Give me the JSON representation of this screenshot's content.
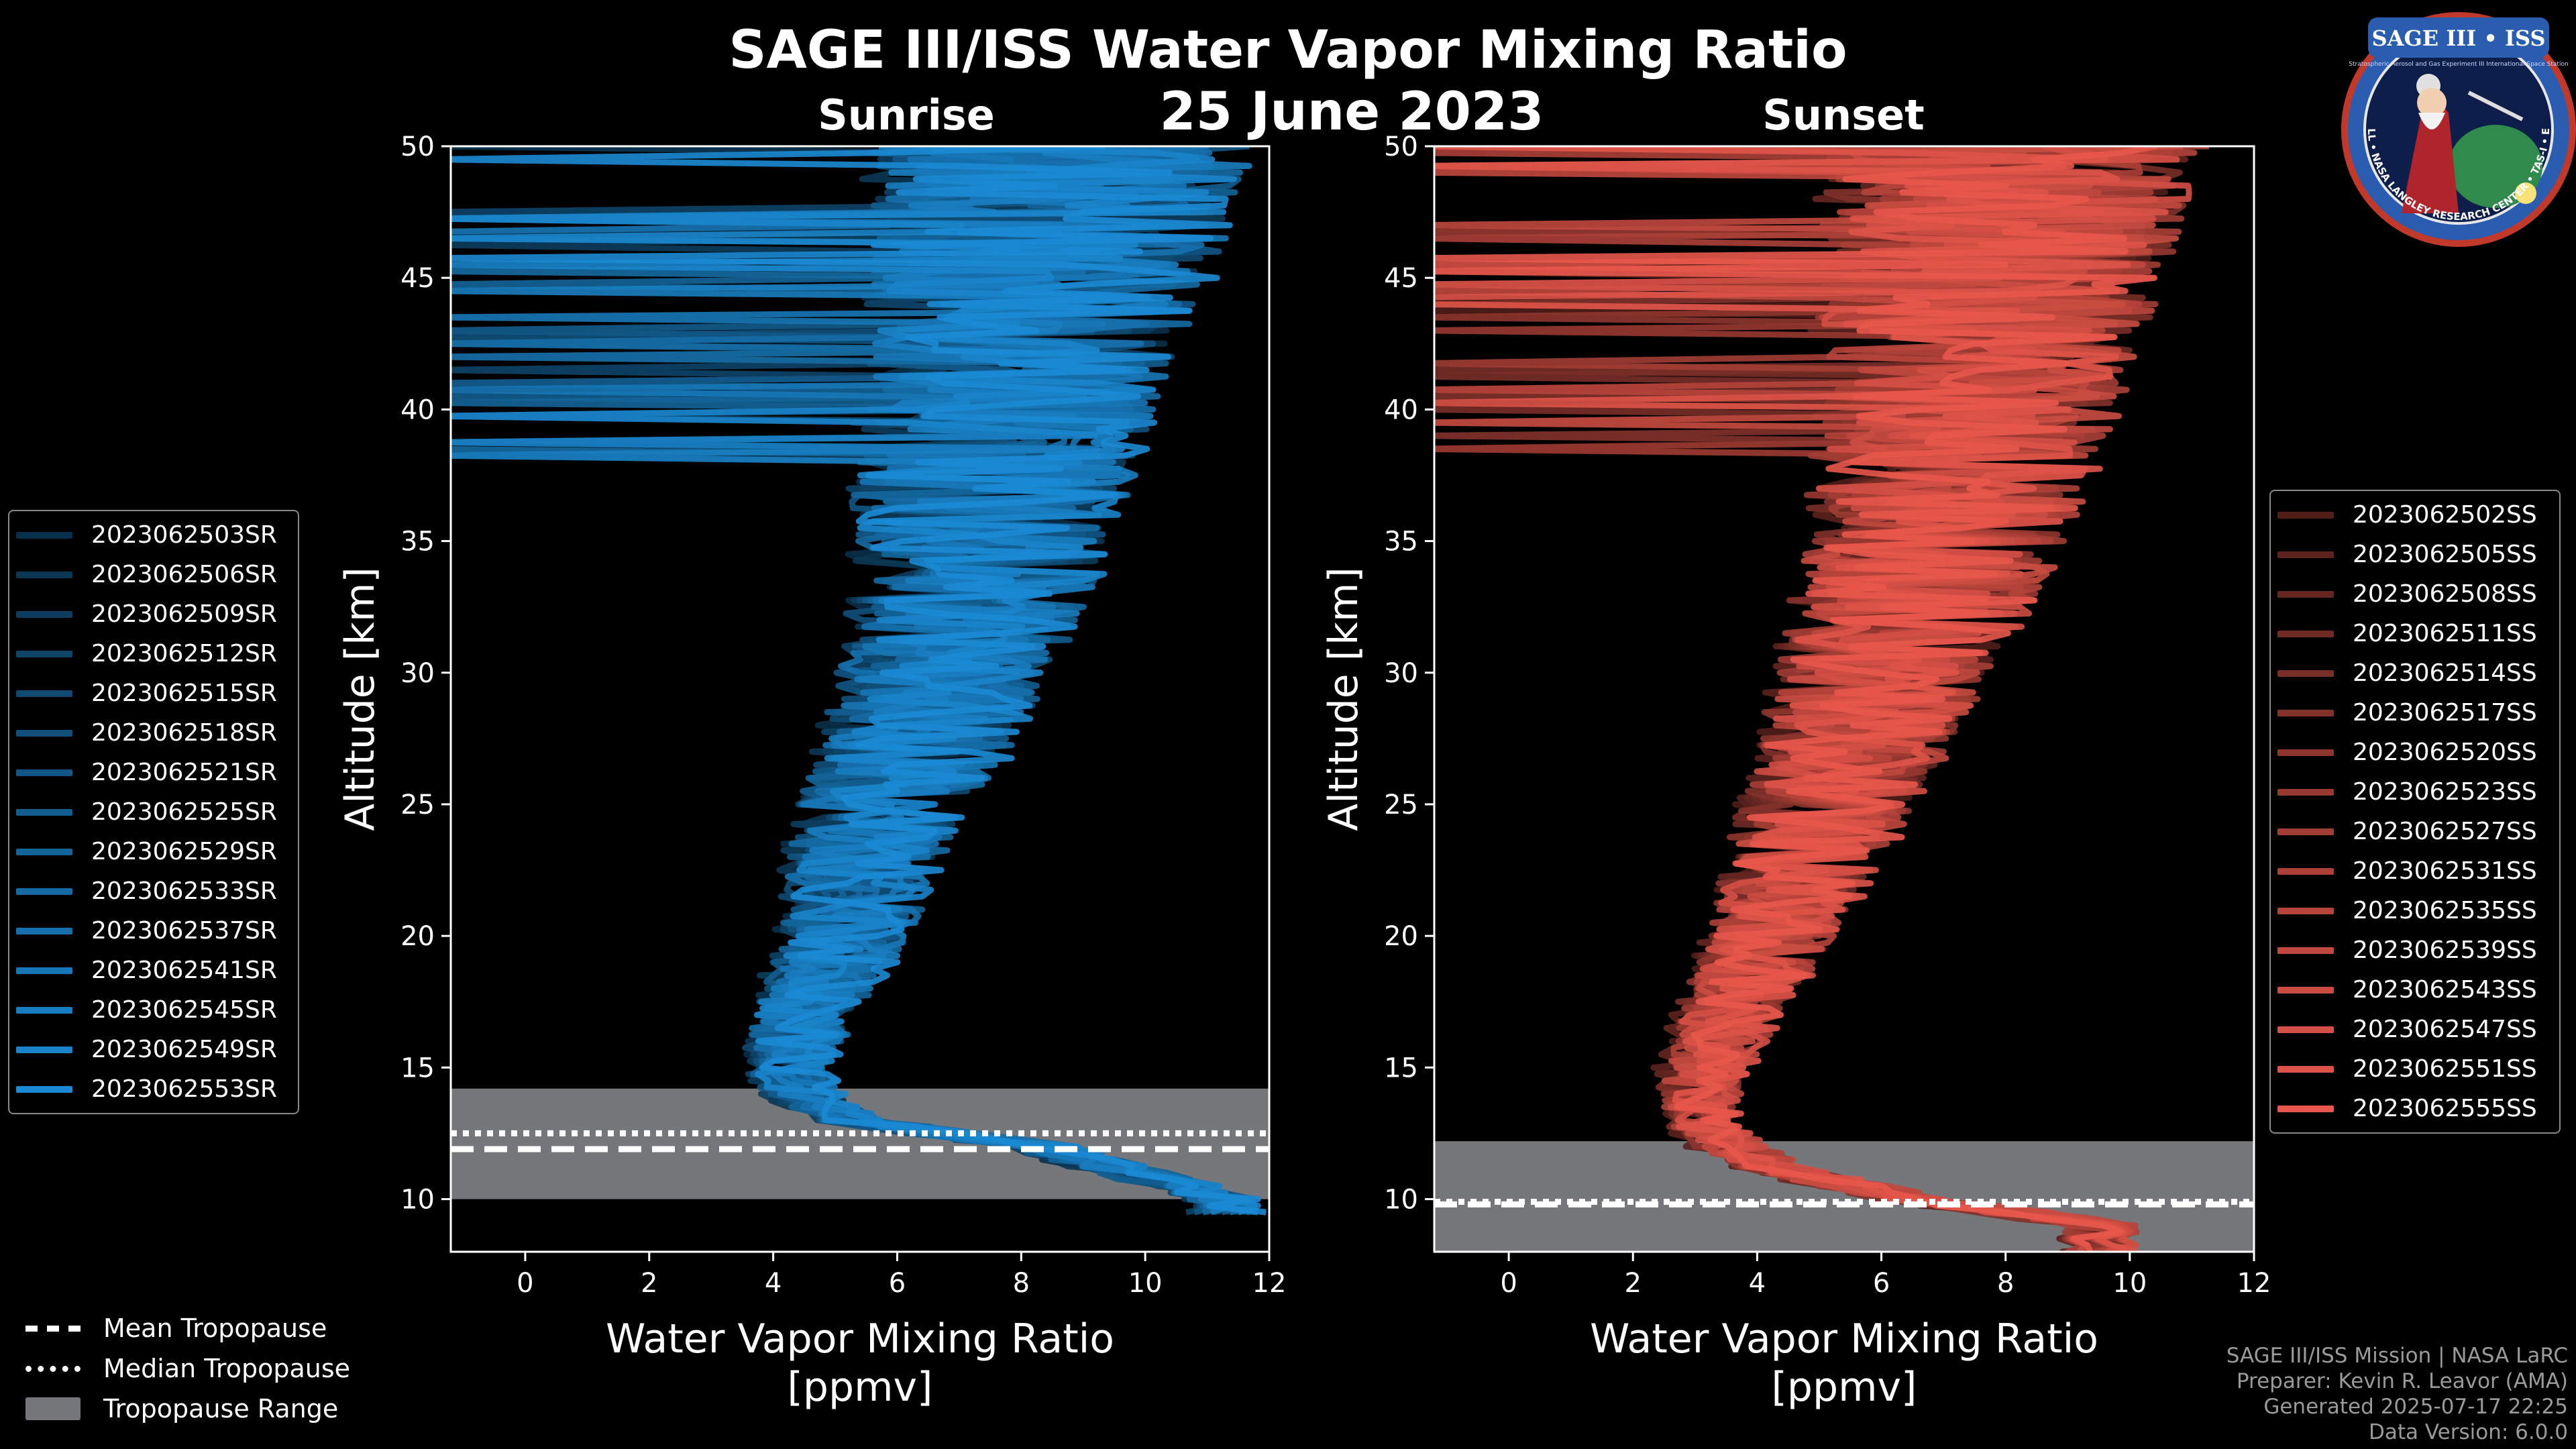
{
  "title": "SAGE III/ISS Water Vapor Mixing Ratio",
  "date": "25 June 2023",
  "colors": {
    "sunrise": "#1b8ad4",
    "sunset": "#e8574b",
    "tropopause_range": "#76777a",
    "background": "#000000"
  },
  "chart_data": [
    {
      "type": "line",
      "subtitle": "Sunrise",
      "xlabel": "Water Vapor Mixing Ratio\n[ppmv]",
      "ylabel": "Altitude [km]",
      "xlim": [
        -1.2,
        12
      ],
      "ylim": [
        8,
        50
      ],
      "xticks": [
        0,
        2,
        4,
        6,
        8,
        10,
        12
      ],
      "yticks": [
        10,
        15,
        20,
        25,
        30,
        35,
        40,
        45,
        50
      ],
      "tropopause": {
        "mean": 11.9,
        "median": 12.5,
        "range": [
          10.0,
          14.2
        ]
      },
      "profile_shape": {
        "altitude": [
          10,
          12,
          13,
          14,
          15,
          17,
          20,
          23,
          25,
          27,
          30,
          33,
          35,
          38,
          40,
          43,
          45,
          48,
          50
        ],
        "median": [
          11,
          8,
          5,
          4.2,
          4.0,
          4.2,
          4.9,
          5.2,
          5.5,
          6.0,
          6.5,
          6.9,
          7.1,
          7.3,
          7.5,
          7.8,
          8.0,
          8.2,
          8.4
        ]
      },
      "series": [
        {
          "name": "2023062503SR"
        },
        {
          "name": "2023062506SR"
        },
        {
          "name": "2023062509SR"
        },
        {
          "name": "2023062512SR"
        },
        {
          "name": "2023062515SR"
        },
        {
          "name": "2023062518SR"
        },
        {
          "name": "2023062521SR"
        },
        {
          "name": "2023062525SR"
        },
        {
          "name": "2023062529SR"
        },
        {
          "name": "2023062533SR"
        },
        {
          "name": "2023062537SR"
        },
        {
          "name": "2023062541SR"
        },
        {
          "name": "2023062545SR"
        },
        {
          "name": "2023062549SR"
        },
        {
          "name": "2023062553SR"
        }
      ]
    },
    {
      "type": "line",
      "subtitle": "Sunset",
      "xlabel": "Water Vapor Mixing Ratio\n[ppmv]",
      "ylabel": "Altitude [km]",
      "xlim": [
        -1.2,
        12
      ],
      "ylim": [
        8,
        50
      ],
      "xticks": [
        0,
        2,
        4,
        6,
        8,
        10,
        12
      ],
      "yticks": [
        10,
        15,
        20,
        25,
        30,
        35,
        40,
        45,
        50
      ],
      "tropopause": {
        "mean": 9.8,
        "median": 9.9,
        "range": [
          8.0,
          12.2
        ]
      },
      "profile_shape": {
        "altitude": [
          9,
          10,
          11,
          12,
          13,
          15,
          17,
          20,
          23,
          25,
          27,
          30,
          33,
          35,
          38,
          40,
          43,
          45,
          48,
          50
        ],
        "median": [
          10,
          7,
          5,
          4.0,
          3.5,
          3.6,
          4.0,
          4.7,
          5.2,
          5.6,
          6.0,
          6.5,
          7.0,
          7.3,
          7.6,
          7.8,
          8.1,
          8.3,
          8.5,
          8.6
        ]
      },
      "series": [
        {
          "name": "2023062502SS"
        },
        {
          "name": "2023062505SS"
        },
        {
          "name": "2023062508SS"
        },
        {
          "name": "2023062511SS"
        },
        {
          "name": "2023062514SS"
        },
        {
          "name": "2023062517SS"
        },
        {
          "name": "2023062520SS"
        },
        {
          "name": "2023062523SS"
        },
        {
          "name": "2023062527SS"
        },
        {
          "name": "2023062531SS"
        },
        {
          "name": "2023062535SS"
        },
        {
          "name": "2023062539SS"
        },
        {
          "name": "2023062543SS"
        },
        {
          "name": "2023062547SS"
        },
        {
          "name": "2023062551SS"
        },
        {
          "name": "2023062555SS"
        }
      ]
    }
  ],
  "tropopause_legend": {
    "mean": "Mean Tropopause",
    "median": "Median Tropopause",
    "range": "Tropopause Range"
  },
  "footer": {
    "mission": "SAGE III/ISS Mission | NASA LaRC",
    "preparer": "Preparer: Kevin R. Leavor (AMA)",
    "generated": "Generated 2025-07-17 22:25",
    "version": "Data Version: 6.0.0"
  },
  "logo": {
    "name": "SAGE III • ISS",
    "tagline": "Stratospheric Aerosol and Gas Experiment III International Space Station",
    "ring": "BALL • NASA LANGLEY RESEARCH CENTER • TAS-I • ESA"
  }
}
